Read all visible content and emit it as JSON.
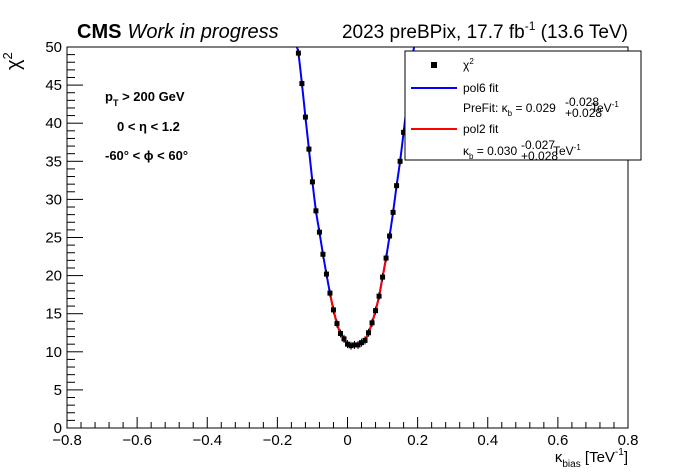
{
  "header": {
    "experiment": "CMS",
    "status": "Work in progress",
    "run_info": "2023 preBPix, 17.7 fb",
    "run_info_sup": "-1",
    "energy": " (13.6 TeV)"
  },
  "cuts": {
    "pt": {
      "p": "p",
      "sub": "T",
      "rest": " > 200 GeV"
    },
    "eta": "0 < η < 1.2",
    "phi": "-60° < ϕ < 60°"
  },
  "legend": {
    "chi2": {
      "base": "χ",
      "sup": "2"
    },
    "pol6": "pol6 fit",
    "prefit": {
      "prefix": "PreFit: κ",
      "sub": "b",
      "value": " = 0.029",
      "sup": "-0.028",
      "low": "+0.028",
      "unit": " TeV",
      "unit_sup": "-1"
    },
    "pol2": "pol2 fit",
    "result": {
      "prefix": "κ",
      "sub": "b",
      "value": " = 0.030",
      "sup": "-0.027",
      "low": "+0.028",
      "unit": " TeV",
      "unit_sup": "-1"
    }
  },
  "chart_data": {
    "type": "scatter",
    "xlabel": {
      "base": "κ",
      "sub": "bias",
      "unit": "  [TeV",
      "unit_sup": "-1",
      "close": "]"
    },
    "ylabel": {
      "base": "χ",
      "sup": "2"
    },
    "xlim": [
      -0.8,
      0.8
    ],
    "ylim": [
      0,
      50
    ],
    "x_ticks": [
      -0.8,
      -0.6,
      -0.4,
      -0.2,
      0,
      0.2,
      0.4,
      0.6,
      0.8
    ],
    "x_tick_labels": [
      "−0.8",
      "−0.6",
      "−0.4",
      "−0.2",
      "0",
      "0.2",
      "0.4",
      "0.6",
      "0.8"
    ],
    "y_ticks": [
      0,
      5,
      10,
      15,
      20,
      25,
      30,
      35,
      40,
      45,
      50
    ],
    "y_tick_labels": [
      "0",
      "5",
      "10",
      "15",
      "20",
      "25",
      "30",
      "35",
      "40",
      "45",
      "50"
    ],
    "colors": {
      "points": "#000000",
      "pol6": "#0000ff",
      "pol2": "#ff0000"
    },
    "series": [
      {
        "name": "χ2",
        "x": [
          -0.14,
          -0.13,
          -0.12,
          -0.11,
          -0.1,
          -0.09,
          -0.08,
          -0.07,
          -0.06,
          -0.05,
          -0.04,
          -0.03,
          -0.02,
          -0.01,
          0.0,
          0.01,
          0.02,
          0.03,
          0.04,
          0.05,
          0.06,
          0.07,
          0.08,
          0.09,
          0.1,
          0.11,
          0.12,
          0.13,
          0.14,
          0.15,
          0.16,
          0.17,
          0.18
        ],
        "y": [
          49.2,
          45.2,
          40.8,
          36.6,
          32.3,
          28.5,
          25.7,
          22.8,
          20.2,
          17.7,
          15.5,
          13.7,
          12.4,
          11.7,
          11.0,
          10.8,
          10.9,
          10.9,
          11.2,
          11.5,
          12.5,
          13.8,
          15.4,
          17.3,
          19.8,
          22.3,
          25.2,
          28.3,
          31.8,
          35.0,
          38.8,
          42.8,
          47.5
        ]
      }
    ],
    "fits": [
      {
        "name": "pol6 fit",
        "min_x": 0.029,
        "min_y": 10.8,
        "range": [
          -0.145,
          0.19
        ]
      },
      {
        "name": "pol2 fit",
        "min_x": 0.03,
        "min_y": 10.8,
        "range": [
          -0.05,
          0.11
        ]
      }
    ]
  }
}
